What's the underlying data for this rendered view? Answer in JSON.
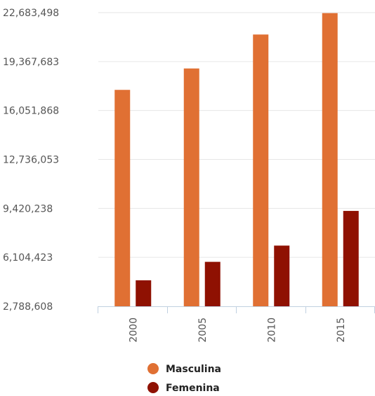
{
  "chart_data": {
    "type": "bar",
    "title": "",
    "xlabel": "",
    "ylabel": "",
    "categories": [
      "2000",
      "2005",
      "2010",
      "2015"
    ],
    "y_ticks": [
      "22,683,498",
      "19,367,683",
      "16,051,868",
      "12,736,053",
      "9,420,238",
      "6,104,423",
      "2,788,608"
    ],
    "ylim": [
      2788608,
      22683498
    ],
    "grid": true,
    "legend_position": "bottom-center",
    "series": [
      {
        "name": "Masculina",
        "color": "#E07033",
        "values": [
          17450000,
          18900000,
          21200000,
          22650000
        ]
      },
      {
        "name": "Femenina",
        "color": "#8F1102",
        "values": [
          4550000,
          5800000,
          6900000,
          9250000
        ]
      }
    ]
  }
}
